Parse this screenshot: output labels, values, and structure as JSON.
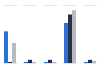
{
  "chart_data": {
    "type": "bar",
    "categories": [
      null,
      null,
      null,
      null,
      null
    ],
    "series": [
      {
        "color": "#2f6fd3",
        "values": [
          30,
          1,
          1,
          38,
          1
        ]
      },
      {
        "color": "#26304a",
        "values": [
          1,
          3,
          3,
          46,
          3
        ]
      },
      {
        "color": "#b8bbc0",
        "values": [
          19,
          1,
          1,
          50,
          2
        ]
      }
    ],
    "ylim": [
      0,
      55
    ],
    "grid": false,
    "tick_labels": false
  }
}
